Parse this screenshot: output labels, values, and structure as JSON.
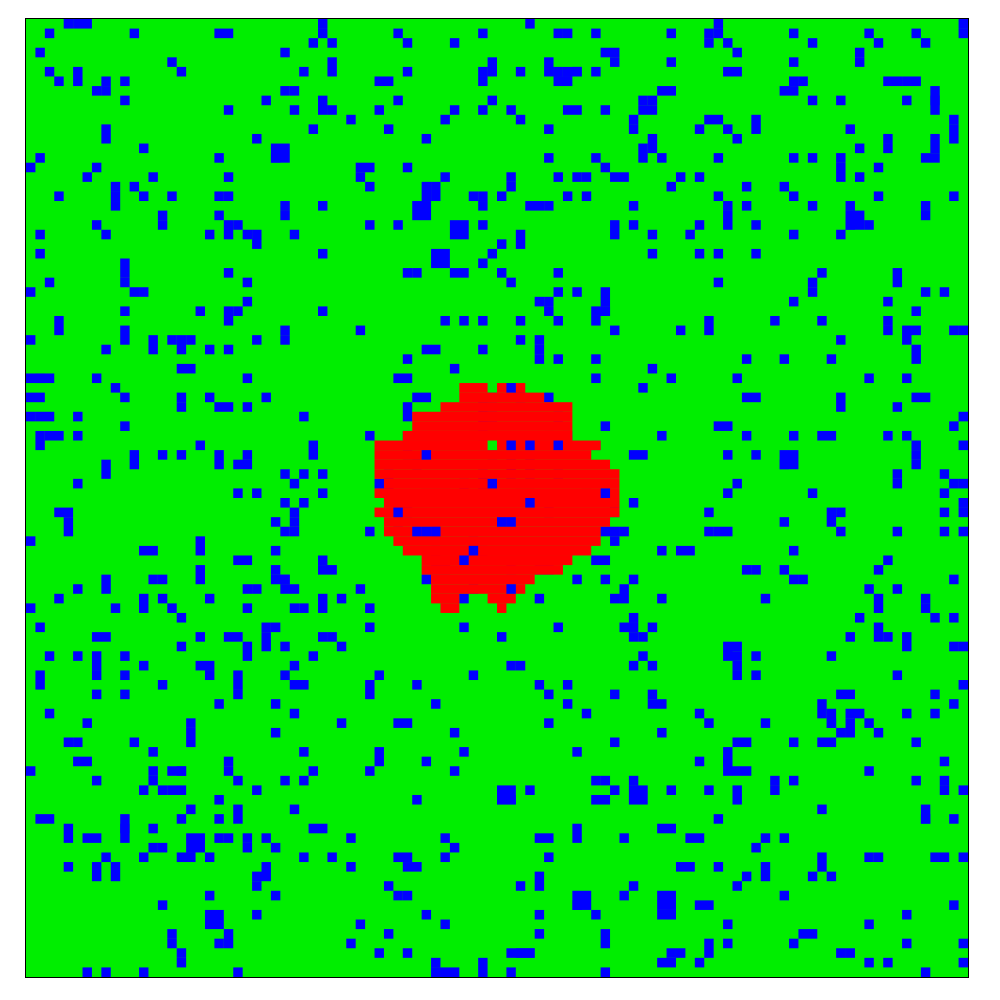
{
  "simulation": {
    "grid": {
      "cols": 100,
      "rows": 100,
      "seed": 7,
      "blue_density": 0.085
    },
    "colors": {
      "background": "#00ee00",
      "blue_cell": "#0000ff",
      "red_cell": "#ff0000",
      "border": "#000000"
    },
    "red_cluster": {
      "rows": [
        {
          "r": 38,
          "start": 46,
          "len": 3
        },
        {
          "r": 38,
          "start": 50,
          "len": 3
        },
        {
          "r": 39,
          "start": 46,
          "len": 9
        },
        {
          "r": 40,
          "start": 44,
          "len": 14
        },
        {
          "r": 41,
          "start": 41,
          "len": 17
        },
        {
          "r": 42,
          "start": 41,
          "len": 17
        },
        {
          "r": 43,
          "start": 40,
          "len": 18
        },
        {
          "r": 44,
          "start": 37,
          "len": 24
        },
        {
          "r": 45,
          "start": 37,
          "len": 23
        },
        {
          "r": 46,
          "start": 37,
          "len": 25
        },
        {
          "r": 47,
          "start": 37,
          "len": 26
        },
        {
          "r": 48,
          "start": 38,
          "len": 25
        },
        {
          "r": 49,
          "start": 37,
          "len": 26
        },
        {
          "r": 50,
          "start": 38,
          "len": 25
        },
        {
          "r": 51,
          "start": 37,
          "len": 26
        },
        {
          "r": 52,
          "start": 38,
          "len": 24
        },
        {
          "r": 53,
          "start": 38,
          "len": 23
        },
        {
          "r": 54,
          "start": 39,
          "len": 22
        },
        {
          "r": 55,
          "start": 40,
          "len": 20
        },
        {
          "r": 56,
          "start": 42,
          "len": 16
        },
        {
          "r": 57,
          "start": 42,
          "len": 15
        },
        {
          "r": 58,
          "start": 43,
          "len": 11
        },
        {
          "r": 59,
          "start": 43,
          "len": 10
        },
        {
          "r": 60,
          "start": 43,
          "len": 3
        },
        {
          "r": 60,
          "start": 49,
          "len": 3
        },
        {
          "r": 61,
          "start": 44,
          "len": 2
        },
        {
          "r": 61,
          "start": 50,
          "len": 1
        }
      ]
    }
  }
}
